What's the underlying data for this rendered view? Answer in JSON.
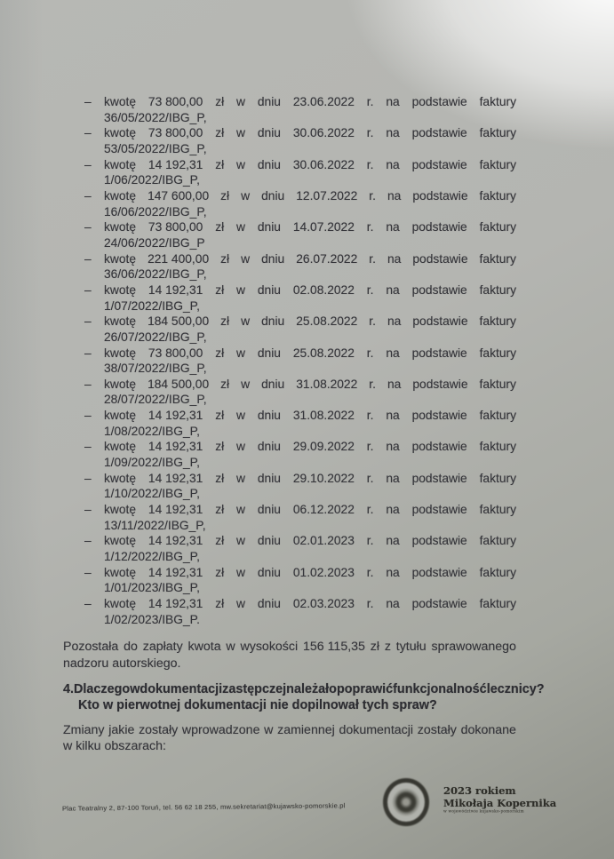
{
  "document": {
    "payment_list": {
      "bullet": "–",
      "words": {
        "kwote": "kwotę",
        "zl": "zł",
        "w": "w",
        "dniu": "dniu",
        "r": "r.",
        "na": "na",
        "podstawie": "podstawie",
        "faktury": "faktury"
      },
      "items": [
        {
          "amount": "73 800,00",
          "date": "23.06.2022",
          "invoice": "36/05/2022/IBG_P,"
        },
        {
          "amount": "73 800,00",
          "date": "30.06.2022",
          "invoice": "53/05/2022/IBG_P,"
        },
        {
          "amount": "14 192,31",
          "date": "30.06.2022",
          "invoice": "1/06/2022/IBG_P,"
        },
        {
          "amount": "147 600,00",
          "date": "12.07.2022",
          "invoice": "16/06/2022/IBG_P,"
        },
        {
          "amount": "73 800,00",
          "date": "14.07.2022",
          "invoice": "24/06/2022/IBG_P"
        },
        {
          "amount": "221 400,00",
          "date": "26.07.2022",
          "invoice": "36/06/2022/IBG_P,"
        },
        {
          "amount": "14 192,31",
          "date": "02.08.2022",
          "invoice": "1/07/2022/IBG_P,"
        },
        {
          "amount": "184 500,00",
          "date": "25.08.2022",
          "invoice": "26/07/2022/IBG_P,"
        },
        {
          "amount": "73 800,00",
          "date": "25.08.2022",
          "invoice": "38/07/2022/IBG_P,"
        },
        {
          "amount": "184 500,00",
          "date": "31.08.2022",
          "invoice": "28/07/2022/IBG_P,"
        },
        {
          "amount": "14 192,31",
          "date": "31.08.2022",
          "invoice": "1/08/2022/IBG_P,"
        },
        {
          "amount": "14 192,31",
          "date": "29.09.2022",
          "invoice": "1/09/2022/IBG_P,"
        },
        {
          "amount": "14 192,31",
          "date": "29.10.2022",
          "invoice": "1/10/2022/IBG_P,"
        },
        {
          "amount": "14 192,31",
          "date": "06.12.2022",
          "invoice": "13/11/2022/IBG_P,"
        },
        {
          "amount": "14 192,31",
          "date": "02.01.2023",
          "invoice": "1/12/2022/IBG_P,"
        },
        {
          "amount": "14 192,31",
          "date": "01.02.2023",
          "invoice": "1/01/2023/IBG_P,"
        },
        {
          "amount": "14 192,31",
          "date": "02.03.2023",
          "invoice": "1/02/2023/IBG_P."
        }
      ]
    },
    "remaining_paragraph": {
      "line1": "Pozostała do zapłaty kwota w wysokości 156 115,35 zł z tytułu sprawowanego",
      "line2": "nadzoru autorskiego."
    },
    "question": {
      "line1": "4. Dlaczego w dokumentacji zastępczej należało poprawić funkcjonalność lecznicy?",
      "line2": "Kto w pierwotnej dokumentacji nie dopilnował tych spraw?"
    },
    "changes_paragraph": {
      "line1": "Zmiany jakie zostały wprowadzone w zamiennej dokumentacji zostały dokonane",
      "line2": "w kilku obszarach:"
    },
    "footer": {
      "address": "Plac Teatralny 2, 87-100 Toruń, tel. 56 62 18 255, mw.sekretariat@kujawsko-pomorskie.pl",
      "logo": {
        "line1": "2023 rokiem",
        "line2": "Mikołaja Kopernika",
        "line3": "w województwie kujawsko-pomorskim"
      }
    }
  }
}
